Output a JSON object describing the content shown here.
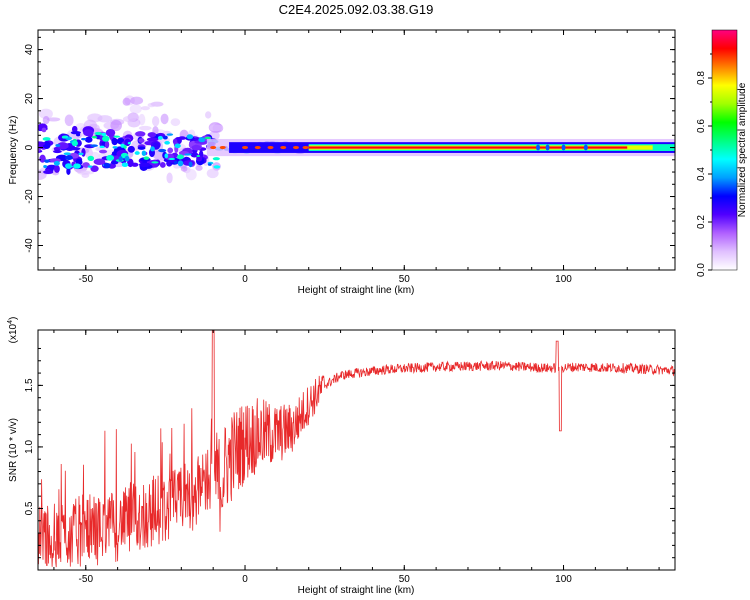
{
  "title": "C2E4.2025.092.03.38.G19",
  "chart_data": [
    {
      "type": "heatmap",
      "xlabel": "Height of straight line (km)",
      "ylabel": "Frequency (Hz)",
      "xlim": [
        -65,
        135
      ],
      "ylim": [
        -50,
        48
      ],
      "xticks": [
        -50,
        0,
        50,
        100
      ],
      "yticks": [
        -40,
        -20,
        0,
        20,
        40
      ],
      "colorbar": {
        "label": "Normalized spectral amplitude",
        "range": [
          0,
          1
        ],
        "ticks": [
          "0.0",
          "0.2",
          "0.4",
          "0.6",
          "0.8"
        ],
        "tick_values": [
          0,
          0.2,
          0.4,
          0.6,
          0.8
        ],
        "colors": [
          "#ffffff",
          "#e0c0ff",
          "#b060ff",
          "#5000ff",
          "#0000ff",
          "#00a0ff",
          "#00ffff",
          "#00ff80",
          "#00ff00",
          "#a0ff00",
          "#ffff00",
          "#ff8000",
          "#ff0000",
          "#ff0080"
        ]
      },
      "description_segments": [
        {
          "x_from": -65,
          "x_to": -10,
          "character": "scattered blobs, freq -12 to +12 Hz, amplitude 0.1-0.5"
        },
        {
          "x_from": -10,
          "x_to": 20,
          "character": "thin line near 0 Hz with red spots"
        },
        {
          "x_from": 20,
          "x_to": 135,
          "character": "continuous band at ~0 Hz, amplitude ~0.95 (red core)"
        }
      ]
    },
    {
      "type": "line",
      "xlabel": "Height of straight line (km)",
      "ylabel": "SNR (10 * v/v)",
      "yunit": "(x10",
      "yunit_exp": "4",
      "yunit_close": ")",
      "xlim": [
        -65,
        135
      ],
      "ylim": [
        0,
        1.95
      ],
      "xticks": [
        -50,
        0,
        50,
        100
      ],
      "yticks": [
        0.5,
        1.0,
        1.5
      ],
      "ytick_labels": [
        "0.5",
        "1.0",
        "1.5"
      ],
      "color": "#e8292a",
      "series_profile": [
        {
          "x": -65,
          "y": 0.25
        },
        {
          "x": -55,
          "y": 0.3
        },
        {
          "x": -45,
          "y": 0.35
        },
        {
          "x": -35,
          "y": 0.42
        },
        {
          "x": -25,
          "y": 0.5
        },
        {
          "x": -15,
          "y": 0.65
        },
        {
          "x": -10,
          "y": 0.8
        },
        {
          "x": -8,
          "y": 0.7
        },
        {
          "x": -5,
          "y": 0.9
        },
        {
          "x": 0,
          "y": 1.05
        },
        {
          "x": 5,
          "y": 1.1
        },
        {
          "x": 10,
          "y": 1.1
        },
        {
          "x": 15,
          "y": 1.15
        },
        {
          "x": 20,
          "y": 1.35
        },
        {
          "x": 25,
          "y": 1.5
        },
        {
          "x": 30,
          "y": 1.58
        },
        {
          "x": 35,
          "y": 1.6
        },
        {
          "x": 45,
          "y": 1.63
        },
        {
          "x": 60,
          "y": 1.65
        },
        {
          "x": 80,
          "y": 1.66
        },
        {
          "x": 95,
          "y": 1.64
        },
        {
          "x": 105,
          "y": 1.65
        },
        {
          "x": 120,
          "y": 1.64
        },
        {
          "x": 135,
          "y": 1.62
        }
      ],
      "notable_points": [
        {
          "x": -10,
          "y": 1.95
        },
        {
          "x": 98,
          "y": 1.88
        },
        {
          "x": 99,
          "y": 1.13
        }
      ]
    }
  ]
}
